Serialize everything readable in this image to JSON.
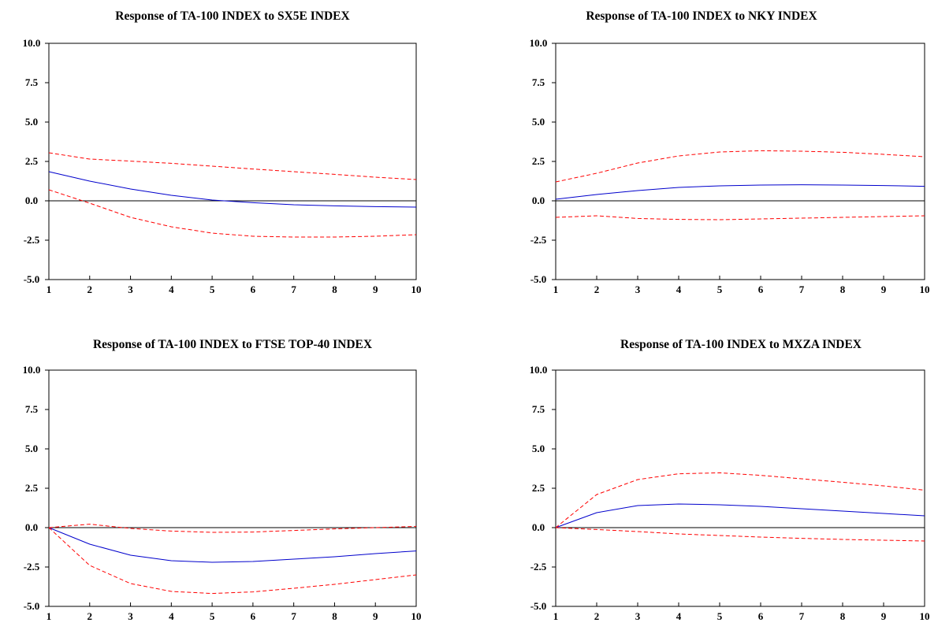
{
  "chart_data": [
    {
      "type": "line",
      "title": "Response of TA-100 INDEX to SX5E INDEX",
      "x": [
        1,
        2,
        3,
        4,
        5,
        6,
        7,
        8,
        9,
        10
      ],
      "ylim": [
        -5.0,
        10.0
      ],
      "yticks": [
        "10.0",
        "7.5",
        "5.0",
        "2.5",
        "0.0",
        "-2.5",
        "-5.0"
      ],
      "xticks": [
        "1",
        "2",
        "3",
        "4",
        "5",
        "6",
        "7",
        "8",
        "9",
        "10"
      ],
      "grid": false,
      "zero_line": true,
      "series": [
        {
          "role": "response",
          "style": "solid",
          "color": "#0000cc",
          "values": [
            1.85,
            1.25,
            0.75,
            0.35,
            0.05,
            -0.12,
            -0.25,
            -0.32,
            -0.37,
            -0.4
          ]
        },
        {
          "role": "upper_band",
          "style": "dashed",
          "color": "#ff0000",
          "values": [
            3.05,
            2.65,
            2.52,
            2.38,
            2.2,
            2.02,
            1.85,
            1.68,
            1.5,
            1.35
          ]
        },
        {
          "role": "lower_band",
          "style": "dashed",
          "color": "#ff0000",
          "values": [
            0.7,
            -0.15,
            -1.05,
            -1.65,
            -2.05,
            -2.25,
            -2.3,
            -2.3,
            -2.25,
            -2.15
          ]
        }
      ]
    },
    {
      "type": "line",
      "title": "Response of TA-100 INDEX to NKY INDEX",
      "x": [
        1,
        2,
        3,
        4,
        5,
        6,
        7,
        8,
        9,
        10
      ],
      "ylim": [
        -5.0,
        10.0
      ],
      "yticks": [
        "10.0",
        "7.5",
        "5.0",
        "2.5",
        "0.0",
        "-2.5",
        "-5.0"
      ],
      "xticks": [
        "1",
        "2",
        "3",
        "4",
        "5",
        "6",
        "7",
        "8",
        "9",
        "10"
      ],
      "grid": false,
      "zero_line": true,
      "series": [
        {
          "role": "response",
          "style": "solid",
          "color": "#0000cc",
          "values": [
            0.1,
            0.4,
            0.65,
            0.85,
            0.95,
            1.0,
            1.02,
            1.0,
            0.97,
            0.92
          ]
        },
        {
          "role": "upper_band",
          "style": "dashed",
          "color": "#ff0000",
          "values": [
            1.2,
            1.75,
            2.4,
            2.85,
            3.1,
            3.18,
            3.15,
            3.08,
            2.95,
            2.8
          ]
        },
        {
          "role": "lower_band",
          "style": "dashed",
          "color": "#ff0000",
          "values": [
            -1.05,
            -0.95,
            -1.12,
            -1.18,
            -1.2,
            -1.15,
            -1.1,
            -1.05,
            -1.0,
            -0.95
          ]
        }
      ]
    },
    {
      "type": "line",
      "title": "Response of TA-100 INDEX to FTSE TOP-40 INDEX",
      "x": [
        1,
        2,
        3,
        4,
        5,
        6,
        7,
        8,
        9,
        10
      ],
      "ylim": [
        -5.0,
        10.0
      ],
      "yticks": [
        "10.0",
        "7.5",
        "5.0",
        "2.5",
        "0.0",
        "-2.5",
        "-5.0"
      ],
      "xticks": [
        "1",
        "2",
        "3",
        "4",
        "5",
        "6",
        "7",
        "8",
        "9",
        "10"
      ],
      "grid": false,
      "zero_line": true,
      "series": [
        {
          "role": "response",
          "style": "solid",
          "color": "#0000cc",
          "values": [
            0.0,
            -1.05,
            -1.75,
            -2.1,
            -2.2,
            -2.15,
            -2.0,
            -1.85,
            -1.65,
            -1.48
          ]
        },
        {
          "role": "upper_band",
          "style": "dashed",
          "color": "#ff0000",
          "values": [
            0.0,
            0.22,
            -0.05,
            -0.22,
            -0.3,
            -0.28,
            -0.18,
            -0.08,
            0.0,
            0.08
          ]
        },
        {
          "role": "lower_band",
          "style": "dashed",
          "color": "#ff0000",
          "values": [
            0.0,
            -2.4,
            -3.55,
            -4.05,
            -4.18,
            -4.08,
            -3.85,
            -3.6,
            -3.3,
            -3.0
          ]
        }
      ]
    },
    {
      "type": "line",
      "title": "Response of TA-100 INDEX to MXZA INDEX",
      "x": [
        1,
        2,
        3,
        4,
        5,
        6,
        7,
        8,
        9,
        10
      ],
      "ylim": [
        -5.0,
        10.0
      ],
      "yticks": [
        "10.0",
        "7.5",
        "5.0",
        "2.5",
        "0.0",
        "-2.5",
        "-5.0"
      ],
      "xticks": [
        "1",
        "2",
        "3",
        "4",
        "5",
        "6",
        "7",
        "8",
        "9",
        "10"
      ],
      "grid": false,
      "zero_line": true,
      "series": [
        {
          "role": "response",
          "style": "solid",
          "color": "#0000cc",
          "values": [
            0.0,
            0.95,
            1.4,
            1.5,
            1.45,
            1.35,
            1.2,
            1.05,
            0.9,
            0.75
          ]
        },
        {
          "role": "upper_band",
          "style": "dashed",
          "color": "#ff0000",
          "values": [
            0.0,
            2.1,
            3.05,
            3.42,
            3.48,
            3.32,
            3.1,
            2.88,
            2.65,
            2.38
          ]
        },
        {
          "role": "lower_band",
          "style": "dashed",
          "color": "#ff0000",
          "values": [
            0.0,
            -0.12,
            -0.25,
            -0.4,
            -0.5,
            -0.6,
            -0.68,
            -0.75,
            -0.8,
            -0.85
          ]
        }
      ]
    }
  ]
}
